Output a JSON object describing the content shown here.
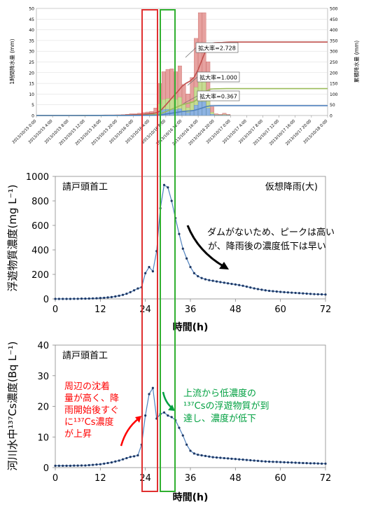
{
  "chart_data": [
    {
      "type": "bar",
      "y_left_label": "1時間降水量 (mm)",
      "y_right_label": "累積降水量 (mm)",
      "ylim_left": [
        0,
        50
      ],
      "ylim_right": [
        0,
        500
      ],
      "y_ticks_left": [
        "0",
        "5",
        "10",
        "15",
        "20",
        "25",
        "30",
        "35",
        "40",
        "45",
        "50"
      ],
      "y_ticks_right": [
        "0",
        "50",
        "100",
        "150",
        "200",
        "250",
        "300",
        "350",
        "400",
        "450",
        "500"
      ],
      "x_ticks": [
        "2013/10/15 0:00",
        "2013/10/15 4:00",
        "2013/10/15 8:00",
        "2013/10/15 12:00",
        "2013/10/15 16:00",
        "2013/10/15 20:00",
        "2013/10/16 0:00",
        "2013/10/16 4:00",
        "2013/10/16 8:00",
        "2013/10/16 12:00",
        "2013/10/16 16:00",
        "2013/10/16 20:00",
        "2013/10/17 0:00",
        "2013/10/17 4:00",
        "2013/10/17 8:00",
        "2013/10/17 12:00",
        "2013/10/17 16:00",
        "2013/10/17 20:00",
        "2013/10/18 0:00"
      ],
      "series": [
        {
          "name": "拡大率=2.728",
          "color": "#c0504d",
          "bar_color": "#e6a19f",
          "hourly_peak": 48,
          "cumulative_final": 370
        },
        {
          "name": "拡大率=1.000",
          "color": "#9bbb59",
          "bar_color": "#c5dc93",
          "hourly_peak": 17.6,
          "cumulative_final": 136
        },
        {
          "name": "拡大率=0.367",
          "color": "#4f81bd",
          "bar_color": "#8db3e2",
          "hourly_peak": 6.5,
          "cumulative_final": 50
        }
      ],
      "hourly_bars_ratio_1": [
        0.05,
        0.05,
        0.05,
        0.05,
        0.05,
        0.05,
        0.05,
        0.05,
        0.05,
        0.05,
        0.1,
        0.15,
        0.2,
        0.3,
        0.3,
        0.4,
        0.5,
        0.6,
        0.7,
        1.3,
        5.5,
        7.5,
        7.9,
        8.0,
        7.5,
        8.5,
        5.3,
        3.7,
        6.5,
        13.2,
        17.6,
        17.6,
        9.2,
        1.5,
        0.3,
        0.2,
        0.4,
        0.2
      ]
    },
    {
      "type": "line",
      "ylabel": "浮遊物質濃度(mg L⁻¹)",
      "xlabel": "時間(h)",
      "xlim": [
        0,
        72
      ],
      "ylim": [
        0,
        1000
      ],
      "x_ticks": [
        "0",
        "12",
        "24",
        "36",
        "48",
        "60",
        "72"
      ],
      "y_ticks": [
        "0",
        "200",
        "400",
        "600",
        "800",
        "1000"
      ],
      "label_left": "請戸頭首工",
      "label_right": "仮想降雨(大)",
      "annotation": [
        "ダムがないため、ピークは高い",
        "が、降雨後の濃度低下は早い"
      ],
      "x": [
        0,
        1,
        2,
        3,
        4,
        5,
        6,
        7,
        8,
        9,
        10,
        11,
        12,
        13,
        14,
        15,
        16,
        17,
        18,
        19,
        20,
        21,
        22,
        23,
        24,
        25,
        26,
        27,
        28,
        29,
        30,
        31,
        32,
        33,
        34,
        35,
        36,
        37,
        38,
        39,
        40,
        41,
        42,
        43,
        44,
        45,
        46,
        47,
        48,
        49,
        50,
        51,
        52,
        53,
        54,
        55,
        56,
        57,
        58,
        59,
        60,
        61,
        62,
        63,
        64,
        65,
        66,
        67,
        68,
        69,
        70,
        71,
        72
      ],
      "y": [
        0,
        0,
        0,
        0,
        0,
        1,
        1,
        2,
        2,
        3,
        4,
        5,
        7,
        9,
        12,
        15,
        20,
        26,
        33,
        42,
        55,
        70,
        85,
        95,
        210,
        260,
        225,
        390,
        740,
        930,
        910,
        800,
        660,
        530,
        410,
        330,
        260,
        210,
        185,
        170,
        160,
        153,
        148,
        142,
        137,
        132,
        127,
        122,
        118,
        113,
        107,
        100,
        93,
        86,
        80,
        75,
        70,
        66,
        63,
        60,
        57,
        55,
        53,
        51,
        49,
        47,
        45,
        43,
        41,
        39,
        38,
        37,
        36
      ]
    },
    {
      "type": "line",
      "ylabel": "河川水中¹³⁷Cs濃度(Bq L⁻¹)",
      "xlabel": "時間(h)",
      "xlim": [
        0,
        72
      ],
      "ylim": [
        0,
        40
      ],
      "x_ticks": [
        "0",
        "12",
        "24",
        "36",
        "48",
        "60",
        "72"
      ],
      "y_ticks": [
        "0",
        "10",
        "20",
        "30",
        "40"
      ],
      "label_left": "請戸頭首工",
      "annotation_red": [
        "周辺の沈着",
        "量が高く、降",
        "雨開始後すぐ",
        "に¹³⁷Cs濃度",
        "が上昇"
      ],
      "annotation_green": [
        "上流から低濃度の",
        "¹³⁷Csの浮遊物質が到",
        "達し、濃度が低下"
      ],
      "x": [
        0,
        1,
        2,
        3,
        4,
        5,
        6,
        7,
        8,
        9,
        10,
        11,
        12,
        13,
        14,
        15,
        16,
        17,
        18,
        19,
        20,
        21,
        22,
        23,
        24,
        25,
        26,
        27,
        28,
        29,
        30,
        31,
        32,
        33,
        34,
        35,
        36,
        37,
        38,
        39,
        40,
        41,
        42,
        43,
        44,
        45,
        46,
        47,
        48,
        49,
        50,
        51,
        52,
        53,
        54,
        55,
        56,
        57,
        58,
        59,
        60,
        61,
        62,
        63,
        64,
        65,
        66,
        67,
        68,
        69,
        70,
        71,
        72
      ],
      "y": [
        0.6,
        0.6,
        0.6,
        0.6,
        0.6,
        0.65,
        0.65,
        0.7,
        0.7,
        0.8,
        0.9,
        1.0,
        1.1,
        1.3,
        1.5,
        1.7,
        2.0,
        2.3,
        2.7,
        3.1,
        3.5,
        3.7,
        4.0,
        7.5,
        17.0,
        24.0,
        26.0,
        16.0,
        17.5,
        18.0,
        17.0,
        16.5,
        15.5,
        13.0,
        10.5,
        7.5,
        5.5,
        4.6,
        4.2,
        4.0,
        3.8,
        3.6,
        3.4,
        3.3,
        3.2,
        3.1,
        3.0,
        2.9,
        2.8,
        2.7,
        2.6,
        2.5,
        2.4,
        2.3,
        2.2,
        2.1,
        2.0,
        1.95,
        1.9,
        1.85,
        1.8,
        1.75,
        1.7,
        1.65,
        1.6,
        1.55,
        1.5,
        1.45,
        1.4,
        1.4,
        1.35,
        1.3,
        1.3
      ]
    }
  ]
}
